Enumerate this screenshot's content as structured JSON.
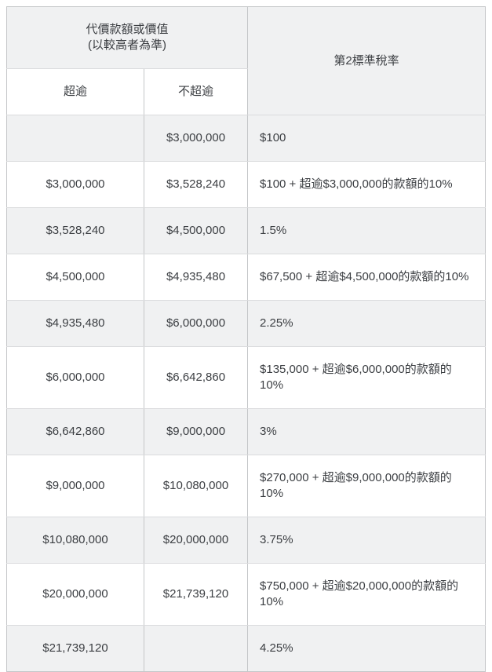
{
  "table": {
    "header": {
      "consideration_title_line1": "代價款額或價值",
      "consideration_title_line2": "(以較高者為準)",
      "rate_title": "第2標準稅率",
      "exceeds_label": "超逾",
      "not_exceeds_label": "不超逾"
    },
    "rows": [
      {
        "exceeds": "",
        "not_exceeds": "$3,000,000",
        "rate": "$100"
      },
      {
        "exceeds": "$3,000,000",
        "not_exceeds": "$3,528,240",
        "rate": "$100 + 超逾$3,000,000的款額的10%"
      },
      {
        "exceeds": "$3,528,240",
        "not_exceeds": "$4,500,000",
        "rate": "1.5%"
      },
      {
        "exceeds": "$4,500,000",
        "not_exceeds": "$4,935,480",
        "rate": "$67,500 + 超逾$4,500,000的款額的10%"
      },
      {
        "exceeds": "$4,935,480",
        "not_exceeds": "$6,000,000",
        "rate": "2.25%"
      },
      {
        "exceeds": "$6,000,000",
        "not_exceeds": "$6,642,860",
        "rate": "$135,000 + 超逾$6,000,000的款額的\n10%"
      },
      {
        "exceeds": "$6,642,860",
        "not_exceeds": "$9,000,000",
        "rate": "3%"
      },
      {
        "exceeds": "$9,000,000",
        "not_exceeds": "$10,080,000",
        "rate": "$270,000 + 超逾$9,000,000的款額的\n10%"
      },
      {
        "exceeds": "$10,080,000",
        "not_exceeds": "$20,000,000",
        "rate": "3.75%"
      },
      {
        "exceeds": "$20,000,000",
        "not_exceeds": "$21,739,120",
        "rate": "$750,000 + 超逾$20,000,000的款額的\n10%"
      },
      {
        "exceeds": "$21,739,120",
        "not_exceeds": "",
        "rate": "4.25%"
      }
    ],
    "appearance": {
      "stripe_background": "#f0f1f2",
      "border_vertical": "#c4c6c8",
      "border_horizontal": "#dadbdd",
      "text_color": "#3b3e42",
      "page_background": "#ffffff"
    }
  }
}
